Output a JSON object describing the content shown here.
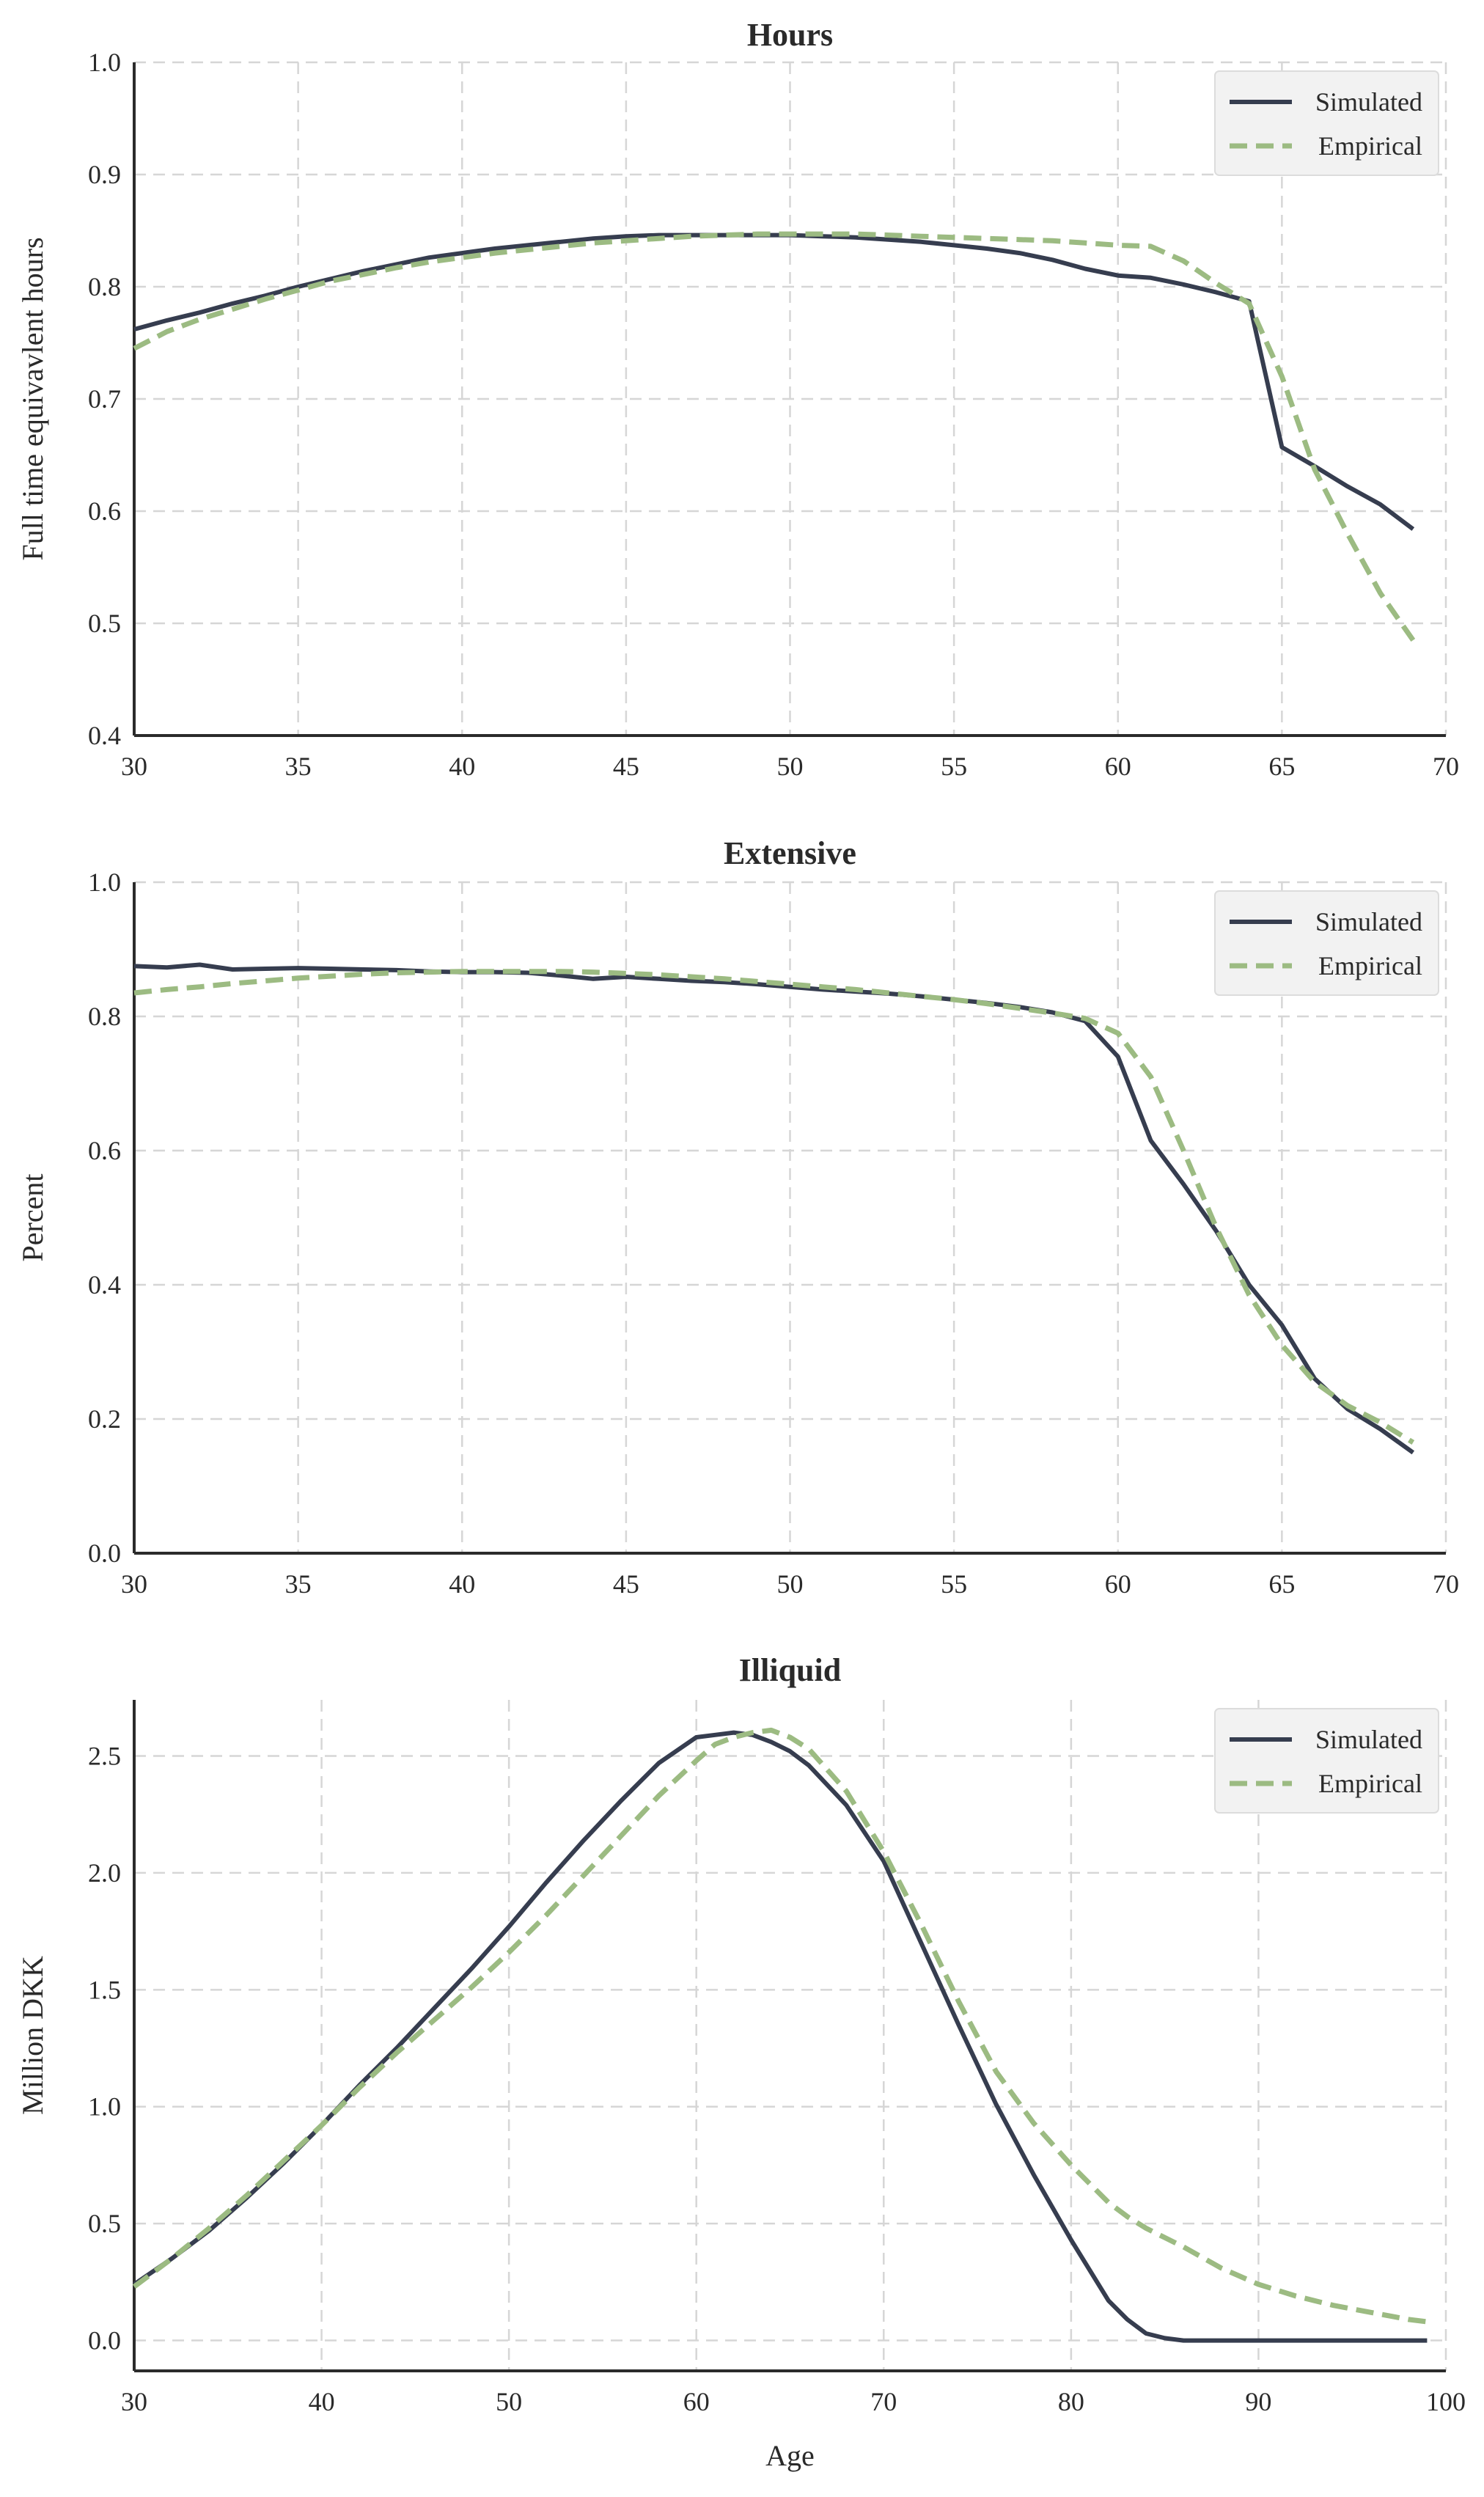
{
  "chart_data": [
    {
      "type": "line",
      "title": "Hours",
      "xlabel": "",
      "ylabel": "Full time equivavlent hours",
      "xlim": [
        30,
        70
      ],
      "ylim": [
        0.4,
        1.0
      ],
      "xticks": [
        "30",
        "35",
        "40",
        "45",
        "50",
        "55",
        "60",
        "65",
        "70"
      ],
      "yticks": [
        "0.4",
        "0.5",
        "0.6",
        "0.7",
        "0.8",
        "0.9",
        "1.0"
      ],
      "grid": true,
      "legend": "top-right",
      "x": [
        30,
        31,
        32,
        33,
        34,
        35,
        36,
        37,
        38,
        39,
        40,
        41,
        42,
        43,
        44,
        45,
        46,
        47,
        48,
        49,
        50,
        51,
        52,
        53,
        54,
        55,
        56,
        57,
        58,
        59,
        60,
        61,
        62,
        63,
        64,
        65,
        66,
        67,
        68,
        69
      ],
      "series": [
        {
          "name": "Simulated",
          "color": "#363d4f",
          "dash": "solid",
          "values": [
            0.762,
            0.77,
            0.777,
            0.785,
            0.792,
            0.8,
            0.807,
            0.814,
            0.82,
            0.826,
            0.83,
            0.834,
            0.837,
            0.84,
            0.843,
            0.845,
            0.846,
            0.846,
            0.846,
            0.846,
            0.846,
            0.845,
            0.844,
            0.842,
            0.84,
            0.837,
            0.834,
            0.83,
            0.824,
            0.816,
            0.81,
            0.808,
            0.802,
            0.795,
            0.787,
            0.657,
            0.64,
            0.622,
            0.606,
            0.584
          ]
        },
        {
          "name": "Empirical",
          "color": "#9cbb82",
          "dash": "dashed",
          "values": [
            0.745,
            0.76,
            0.771,
            0.78,
            0.789,
            0.797,
            0.805,
            0.811,
            0.817,
            0.822,
            0.826,
            0.83,
            0.833,
            0.836,
            0.839,
            0.841,
            0.843,
            0.845,
            0.846,
            0.847,
            0.847,
            0.847,
            0.847,
            0.846,
            0.845,
            0.844,
            0.843,
            0.842,
            0.841,
            0.839,
            0.837,
            0.836,
            0.823,
            0.803,
            0.785,
            0.72,
            0.637,
            0.58,
            0.527,
            0.485
          ]
        }
      ]
    },
    {
      "type": "line",
      "title": "Extensive",
      "xlabel": "",
      "ylabel": "Percent",
      "xlim": [
        30,
        70
      ],
      "ylim": [
        0.0,
        1.0
      ],
      "xticks": [
        "30",
        "35",
        "40",
        "45",
        "50",
        "55",
        "60",
        "65",
        "70"
      ],
      "yticks": [
        "0.0",
        "0.2",
        "0.4",
        "0.6",
        "0.8",
        "1.0"
      ],
      "grid": true,
      "legend": "top-right",
      "x": [
        30,
        31,
        32,
        33,
        34,
        35,
        36,
        37,
        38,
        39,
        40,
        41,
        42,
        43,
        44,
        45,
        46,
        47,
        48,
        49,
        50,
        51,
        52,
        53,
        54,
        55,
        56,
        57,
        58,
        59,
        60,
        61,
        62,
        63,
        64,
        65,
        66,
        67,
        68,
        69
      ],
      "series": [
        {
          "name": "Simulated",
          "color": "#363d4f",
          "dash": "solid",
          "values": [
            0.875,
            0.873,
            0.877,
            0.87,
            0.871,
            0.872,
            0.871,
            0.87,
            0.869,
            0.867,
            0.866,
            0.866,
            0.865,
            0.861,
            0.856,
            0.859,
            0.856,
            0.853,
            0.851,
            0.848,
            0.844,
            0.84,
            0.837,
            0.834,
            0.83,
            0.825,
            0.82,
            0.814,
            0.806,
            0.793,
            0.74,
            0.615,
            0.55,
            0.48,
            0.4,
            0.34,
            0.26,
            0.215,
            0.185,
            0.15
          ]
        },
        {
          "name": "Empirical",
          "color": "#9cbb82",
          "dash": "dashed",
          "values": [
            0.835,
            0.84,
            0.844,
            0.849,
            0.853,
            0.857,
            0.86,
            0.863,
            0.865,
            0.866,
            0.867,
            0.867,
            0.867,
            0.867,
            0.866,
            0.864,
            0.862,
            0.859,
            0.856,
            0.852,
            0.848,
            0.844,
            0.84,
            0.835,
            0.83,
            0.825,
            0.819,
            0.812,
            0.805,
            0.797,
            0.775,
            0.71,
            0.6,
            0.485,
            0.385,
            0.31,
            0.255,
            0.22,
            0.195,
            0.165
          ]
        }
      ]
    },
    {
      "type": "line",
      "title": "Illiquid",
      "xlabel": "Age",
      "ylabel": "Million DKK",
      "xlim": [
        30,
        100
      ],
      "ylim": [
        -0.13,
        2.74
      ],
      "xticks": [
        "30",
        "40",
        "50",
        "60",
        "70",
        "80",
        "90",
        "100"
      ],
      "yticks": [
        "0.0",
        "0.5",
        "1.0",
        "1.5",
        "2.0",
        "2.5"
      ],
      "grid": true,
      "legend": "top-right",
      "x": [
        30,
        32,
        34,
        36,
        38,
        40,
        42,
        44,
        46,
        48,
        50,
        52,
        54,
        56,
        58,
        60,
        61,
        62,
        63,
        64,
        65,
        66,
        68,
        70,
        72,
        74,
        76,
        78,
        80,
        82,
        83,
        84,
        85,
        86,
        88,
        90,
        92,
        94,
        96,
        98,
        99
      ],
      "series": [
        {
          "name": "Simulated",
          "color": "#363d4f",
          "dash": "solid",
          "values": [
            0.24,
            0.35,
            0.47,
            0.61,
            0.76,
            0.92,
            1.09,
            1.25,
            1.42,
            1.59,
            1.77,
            1.96,
            2.14,
            2.31,
            2.47,
            2.58,
            2.59,
            2.6,
            2.59,
            2.56,
            2.52,
            2.46,
            2.29,
            2.05,
            1.7,
            1.35,
            1.01,
            0.71,
            0.43,
            0.17,
            0.09,
            0.03,
            0.01,
            0.0,
            0.0,
            0.0,
            0.0,
            0.0,
            0.0,
            0.0,
            0.0
          ]
        },
        {
          "name": "Empirical",
          "color": "#9cbb82",
          "dash": "dashed",
          "values": [
            0.23,
            0.35,
            0.48,
            0.62,
            0.77,
            0.92,
            1.08,
            1.23,
            1.37,
            1.51,
            1.66,
            1.82,
            1.99,
            2.16,
            2.33,
            2.48,
            2.55,
            2.58,
            2.6,
            2.61,
            2.58,
            2.53,
            2.35,
            2.09,
            1.78,
            1.45,
            1.15,
            0.93,
            0.75,
            0.59,
            0.53,
            0.48,
            0.44,
            0.4,
            0.31,
            0.24,
            0.19,
            0.15,
            0.12,
            0.09,
            0.08
          ]
        }
      ]
    }
  ]
}
